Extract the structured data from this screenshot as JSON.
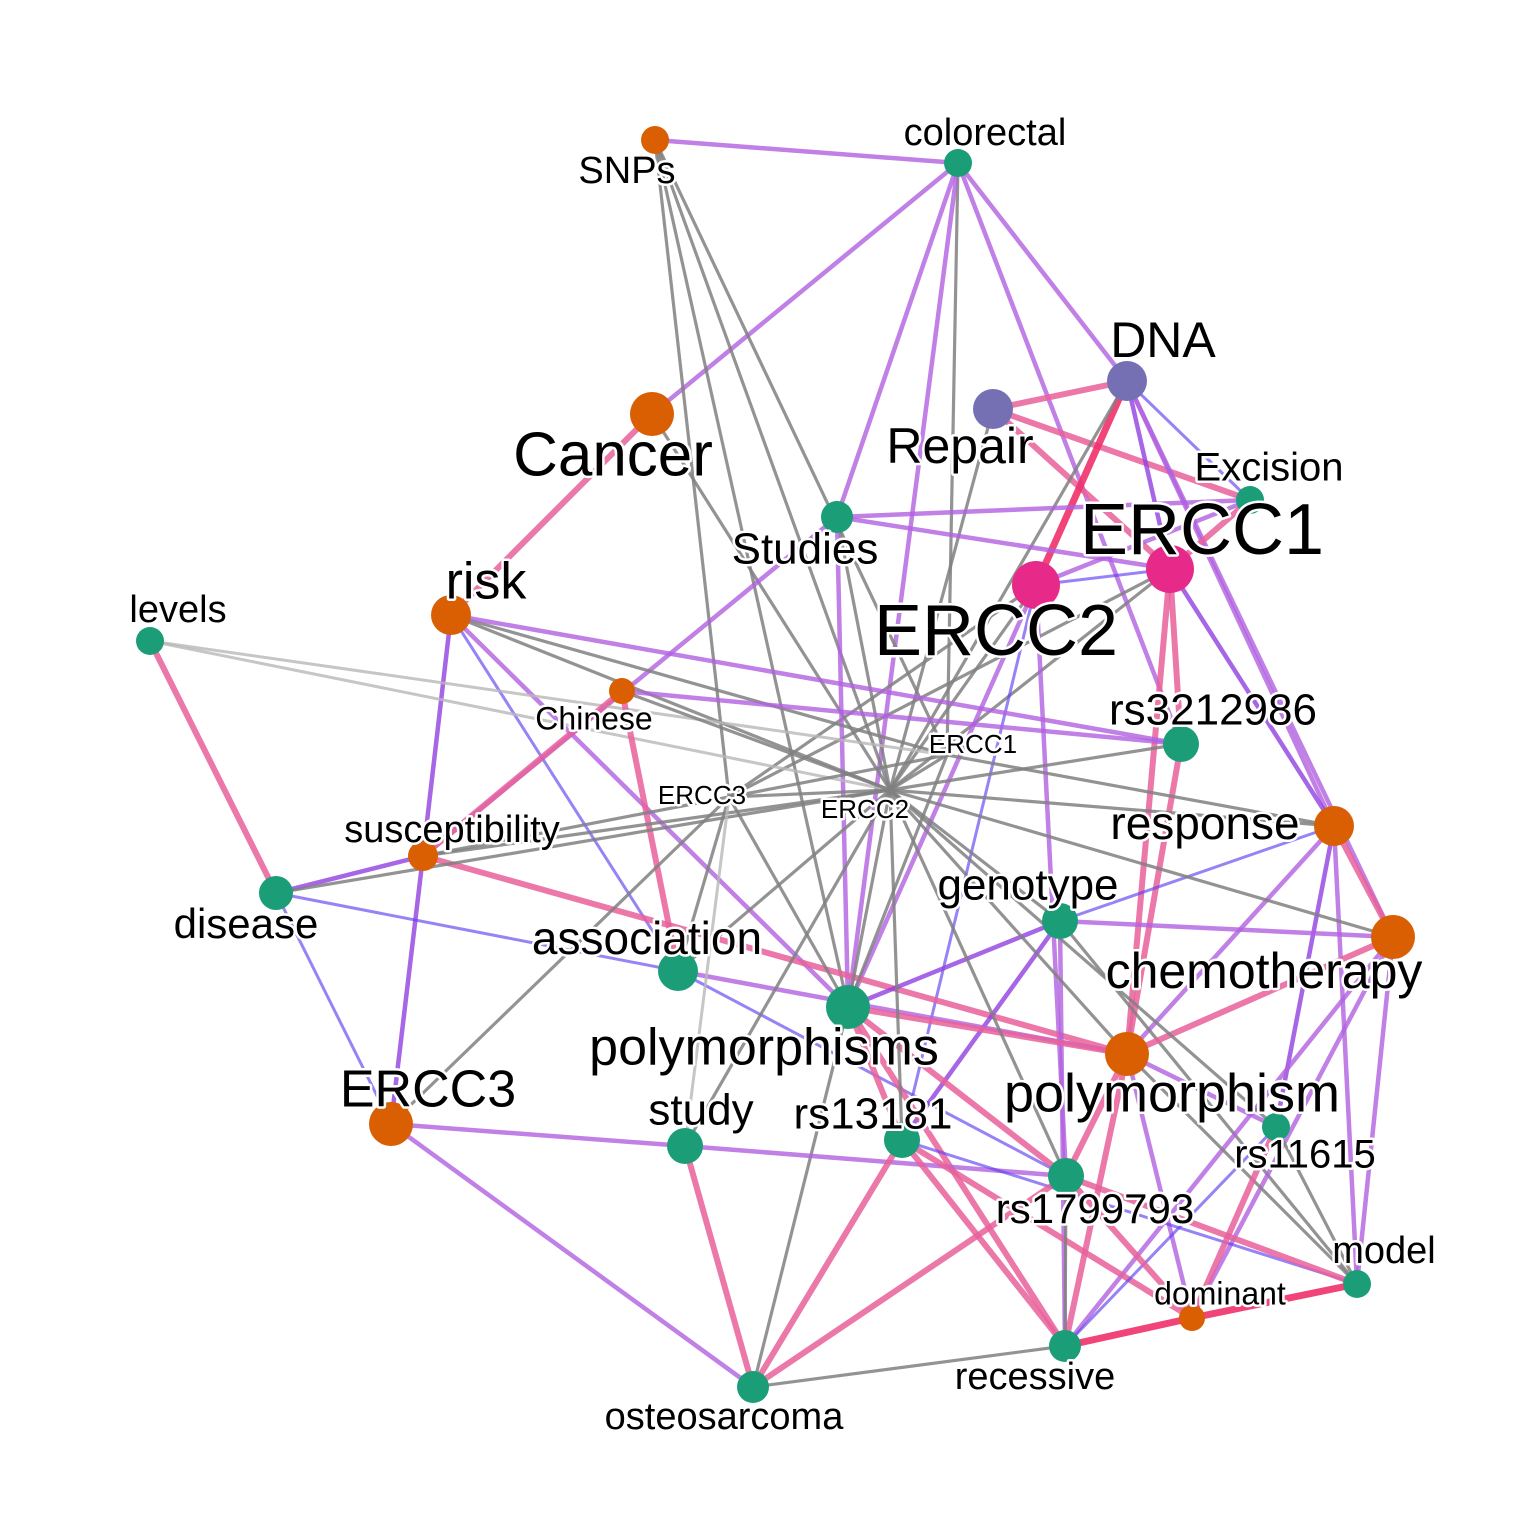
{
  "colors": {
    "teal": "#1b9e77",
    "orange": "#d95f02",
    "purple": "#7570b3",
    "magenta": "#e7298a",
    "edge_gray": "#808080",
    "edge_lightgray": "#b8b8b8",
    "edge_violet": "#b060e0",
    "edge_pink": "#e8609a",
    "edge_blue": "#6040f0",
    "edge_purple": "#9040e0",
    "edge_red": "#f0306a"
  },
  "nodes": [
    {
      "id": "colorectal",
      "label": "colorectal",
      "color": "teal"
    },
    {
      "id": "snps",
      "label": "SNPs",
      "color": "orange"
    },
    {
      "id": "dna",
      "label": "DNA",
      "color": "purple"
    },
    {
      "id": "cancer",
      "label": "Cancer",
      "color": "orange"
    },
    {
      "id": "repair",
      "label": "Repair",
      "color": "purple"
    },
    {
      "id": "excision",
      "label": "Excision",
      "color": "teal"
    },
    {
      "id": "ercc1_big",
      "label": "ERCC1",
      "color": "magenta"
    },
    {
      "id": "studies",
      "label": "Studies",
      "color": "teal"
    },
    {
      "id": "ercc2_big",
      "label": "ERCC2",
      "color": "magenta"
    },
    {
      "id": "risk",
      "label": "risk",
      "color": "orange"
    },
    {
      "id": "levels",
      "label": "levels",
      "color": "teal"
    },
    {
      "id": "chinese",
      "label": "Chinese",
      "color": "orange"
    },
    {
      "id": "rs3212986",
      "label": "rs3212986",
      "color": "teal"
    },
    {
      "id": "ercc1_small",
      "label": "ERCC1",
      "color": "gray"
    },
    {
      "id": "ercc3_small",
      "label": "ERCC3",
      "color": "gray"
    },
    {
      "id": "ercc2_small",
      "label": "ERCC2",
      "color": "gray"
    },
    {
      "id": "response",
      "label": "response",
      "color": "orange"
    },
    {
      "id": "susceptibility",
      "label": "susceptibility",
      "color": "orange"
    },
    {
      "id": "disease",
      "label": "disease",
      "color": "teal"
    },
    {
      "id": "genotype",
      "label": "genotype",
      "color": "teal"
    },
    {
      "id": "chemotherapy",
      "label": "chemotherapy",
      "color": "orange"
    },
    {
      "id": "association",
      "label": "association",
      "color": "teal"
    },
    {
      "id": "polymorphisms",
      "label": "polymorphisms",
      "color": "teal"
    },
    {
      "id": "polymorphism",
      "label": "polymorphism",
      "color": "orange"
    },
    {
      "id": "ercc3_big",
      "label": "ERCC3",
      "color": "orange"
    },
    {
      "id": "study",
      "label": "study",
      "color": "teal"
    },
    {
      "id": "rs13181",
      "label": "rs13181",
      "color": "teal"
    },
    {
      "id": "rs11615",
      "label": "rs11615",
      "color": "teal"
    },
    {
      "id": "rs1799793",
      "label": "rs1799793",
      "color": "teal"
    },
    {
      "id": "model",
      "label": "model",
      "color": "teal"
    },
    {
      "id": "dominant",
      "label": "dominant",
      "color": "orange"
    },
    {
      "id": "recessive",
      "label": "recessive",
      "color": "teal"
    },
    {
      "id": "osteosarcoma",
      "label": "osteosarcoma",
      "color": "teal"
    }
  ],
  "edges": [
    [
      "snps",
      "colorectal",
      "violet"
    ],
    [
      "colorectal",
      "cancer",
      "violet"
    ],
    [
      "colorectal",
      "studies",
      "violet"
    ],
    [
      "colorectal",
      "dna",
      "violet"
    ],
    [
      "colorectal",
      "rs3212986",
      "violet"
    ],
    [
      "colorectal",
      "ercc1_small",
      "gray"
    ],
    [
      "colorectal",
      "polymorphisms",
      "violet"
    ],
    [
      "snps",
      "ercc1_small",
      "gray"
    ],
    [
      "snps",
      "ercc3_small",
      "gray"
    ],
    [
      "snps",
      "ercc2_small",
      "gray"
    ],
    [
      "snps",
      "polymorphisms",
      "gray"
    ],
    [
      "cancer",
      "risk",
      "pink"
    ],
    [
      "cancer",
      "ercc2_small",
      "gray"
    ],
    [
      "repair",
      "dna",
      "pink"
    ],
    [
      "repair",
      "excision",
      "pink"
    ],
    [
      "repair",
      "ercc1_big",
      "pink"
    ],
    [
      "repair",
      "ercc2_small",
      "gray"
    ],
    [
      "dna",
      "ercc1_big",
      "purple"
    ],
    [
      "dna",
      "ercc2_big",
      "red"
    ],
    [
      "dna",
      "excision",
      "blue"
    ],
    [
      "dna",
      "response",
      "violet"
    ],
    [
      "dna",
      "chemotherapy",
      "violet"
    ],
    [
      "dna",
      "ercc2_small",
      "gray"
    ],
    [
      "excision",
      "ercc1_big",
      "pink"
    ],
    [
      "excision",
      "ercc2_big",
      "violet"
    ],
    [
      "excision",
      "studies",
      "violet"
    ],
    [
      "ercc1_big",
      "ercc2_big",
      "blue"
    ],
    [
      "ercc1_big",
      "rs3212986",
      "pink"
    ],
    [
      "ercc1_big",
      "response",
      "purple"
    ],
    [
      "ercc1_big",
      "studies",
      "violet"
    ],
    [
      "ercc1_big",
      "polymorphism",
      "pink"
    ],
    [
      "ercc1_big",
      "ercc2_small",
      "gray"
    ],
    [
      "ercc1_big",
      "ercc3_small",
      "gray"
    ],
    [
      "ercc2_big",
      "ercc3_small",
      "gray"
    ],
    [
      "ercc2_big",
      "ercc2_small",
      "gray"
    ],
    [
      "ercc2_big",
      "rs13181",
      "blue"
    ],
    [
      "ercc2_big",
      "polymorphisms",
      "violet"
    ],
    [
      "ercc2_big",
      "rs1799793",
      "violet"
    ],
    [
      "studies",
      "ercc2_small",
      "gray"
    ],
    [
      "studies",
      "polymorphisms",
      "violet"
    ],
    [
      "studies",
      "susceptibility",
      "violet"
    ],
    [
      "risk",
      "ercc1_small",
      "gray"
    ],
    [
      "risk",
      "ercc2_small",
      "gray"
    ],
    [
      "risk",
      "rs3212986",
      "violet"
    ],
    [
      "risk",
      "susceptibility",
      "purple"
    ],
    [
      "risk",
      "association",
      "blue"
    ],
    [
      "risk",
      "polymorphisms",
      "violet"
    ],
    [
      "levels",
      "ercc1_small",
      "lightgray"
    ],
    [
      "levels",
      "ercc2_small",
      "lightgray"
    ],
    [
      "levels",
      "disease",
      "pink"
    ],
    [
      "chinese",
      "ercc2_small",
      "gray"
    ],
    [
      "chinese",
      "susceptibility",
      "pink"
    ],
    [
      "chinese",
      "association",
      "pink"
    ],
    [
      "chinese",
      "rs3212986",
      "violet"
    ],
    [
      "rs3212986",
      "ercc2_small",
      "gray"
    ],
    [
      "rs3212986",
      "polymorphism",
      "pink"
    ],
    [
      "response",
      "ercc2_small",
      "gray"
    ],
    [
      "response",
      "ercc1_small",
      "gray"
    ],
    [
      "response",
      "chemotherapy",
      "pink"
    ],
    [
      "response",
      "genotype",
      "blue"
    ],
    [
      "response",
      "polymorphism",
      "violet"
    ],
    [
      "response",
      "model",
      "violet"
    ],
    [
      "response",
      "rs11615",
      "purple"
    ],
    [
      "susceptibility",
      "ercc2_small",
      "gray"
    ],
    [
      "susceptibility",
      "ercc3_small",
      "gray"
    ],
    [
      "susceptibility",
      "disease",
      "purple"
    ],
    [
      "susceptibility",
      "polymorphism",
      "pink"
    ],
    [
      "susceptibility",
      "ercc3_big",
      "purple"
    ],
    [
      "disease",
      "ercc2_small",
      "gray"
    ],
    [
      "disease",
      "association",
      "blue"
    ],
    [
      "disease",
      "ercc3_big",
      "blue"
    ],
    [
      "genotype",
      "ercc2_small",
      "gray"
    ],
    [
      "genotype",
      "polymorphisms",
      "purple"
    ],
    [
      "genotype",
      "rs13181",
      "purple"
    ],
    [
      "genotype",
      "recessive",
      "violet"
    ],
    [
      "genotype",
      "chemotherapy",
      "violet"
    ],
    [
      "genotype",
      "model",
      "gray"
    ],
    [
      "chemotherapy",
      "ercc2_small",
      "gray"
    ],
    [
      "chemotherapy",
      "polymorphism",
      "pink"
    ],
    [
      "chemotherapy",
      "recessive",
      "violet"
    ],
    [
      "chemotherapy",
      "dominant",
      "violet"
    ],
    [
      "chemotherapy",
      "model",
      "violet"
    ],
    [
      "association",
      "ercc2_small",
      "gray"
    ],
    [
      "association",
      "polymorphism",
      "violet"
    ],
    [
      "association",
      "ercc3_small",
      "gray"
    ],
    [
      "association",
      "rs1799793",
      "blue"
    ],
    [
      "polymorphisms",
      "ercc2_small",
      "gray"
    ],
    [
      "polymorphisms",
      "ercc3_small",
      "gray"
    ],
    [
      "polymorphisms",
      "ercc1_small",
      "gray"
    ],
    [
      "polymorphisms",
      "polymorphism",
      "pink"
    ],
    [
      "polymorphisms",
      "rs13181",
      "pink"
    ],
    [
      "polymorphisms",
      "rs1799793",
      "pink"
    ],
    [
      "polymorphisms",
      "recessive",
      "pink"
    ],
    [
      "polymorphisms",
      "osteosarcoma",
      "gray"
    ],
    [
      "polymorphism",
      "ercc2_small",
      "gray"
    ],
    [
      "polymorphism",
      "rs1799793",
      "pink"
    ],
    [
      "polymorphism",
      "rs11615",
      "violet"
    ],
    [
      "polymorphism",
      "recessive",
      "pink"
    ],
    [
      "polymorphism",
      "dominant",
      "violet"
    ],
    [
      "polymorphism",
      "model",
      "gray"
    ],
    [
      "ercc3_big",
      "ercc3_small",
      "gray"
    ],
    [
      "ercc3_big",
      "study",
      "violet"
    ],
    [
      "ercc3_big",
      "osteosarcoma",
      "violet"
    ],
    [
      "study",
      "ercc2_small",
      "gray"
    ],
    [
      "study",
      "osteosarcoma",
      "pink"
    ],
    [
      "study",
      "rs1799793",
      "violet"
    ],
    [
      "study",
      "ercc3_small",
      "lightgray"
    ],
    [
      "rs13181",
      "ercc2_small",
      "gray"
    ],
    [
      "rs13181",
      "osteosarcoma",
      "pink"
    ],
    [
      "rs13181",
      "recessive",
      "pink"
    ],
    [
      "rs13181",
      "dominant",
      "pink"
    ],
    [
      "rs13181",
      "model",
      "blue"
    ],
    [
      "rs11615",
      "ercc2_small",
      "gray"
    ],
    [
      "rs11615",
      "recessive",
      "blue"
    ],
    [
      "rs11615",
      "dominant",
      "pink"
    ],
    [
      "rs1799793",
      "ercc2_small",
      "gray"
    ],
    [
      "rs1799793",
      "recessive",
      "gray"
    ],
    [
      "rs1799793",
      "dominant",
      "pink"
    ],
    [
      "rs1799793",
      "model",
      "pink"
    ],
    [
      "rs1799793",
      "osteosarcoma",
      "pink"
    ],
    [
      "dominant",
      "recessive",
      "red"
    ],
    [
      "dominant",
      "model",
      "red"
    ],
    [
      "model",
      "rs11615",
      "gray"
    ],
    [
      "recessive",
      "osteosarcoma",
      "gray"
    ],
    [
      "ercc1_small",
      "ercc3_small",
      "gray"
    ],
    [
      "ercc1_small",
      "ercc2_small",
      "gray"
    ],
    [
      "ercc3_small",
      "ercc2_small",
      "gray"
    ]
  ]
}
